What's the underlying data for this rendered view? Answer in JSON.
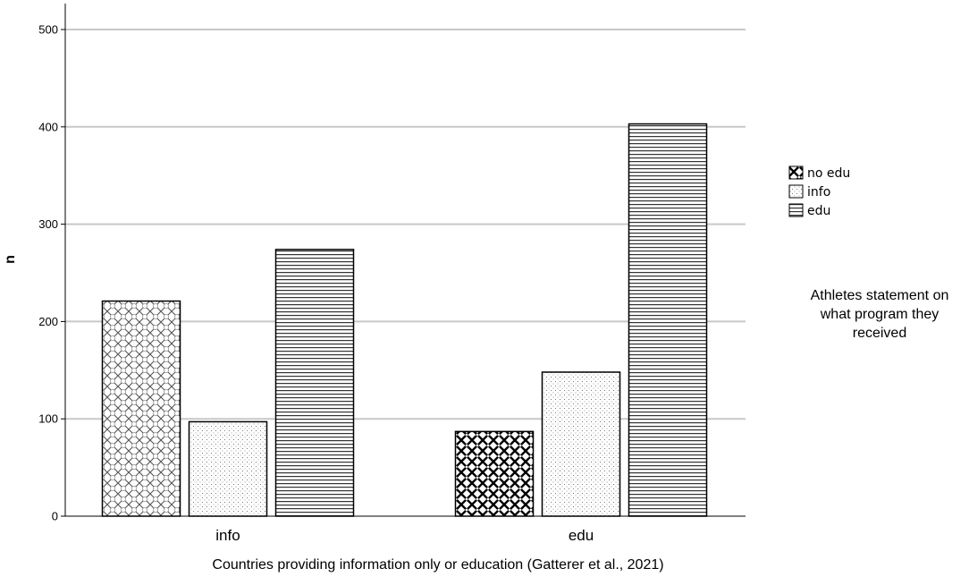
{
  "chart_data": {
    "type": "bar",
    "categories": [
      "info",
      "edu"
    ],
    "series": [
      {
        "name": "no edu",
        "values": [
          221,
          87
        ]
      },
      {
        "name": "info",
        "values": [
          97,
          148
        ]
      },
      {
        "name": "edu",
        "values": [
          274,
          403
        ]
      }
    ],
    "xlabel": "Countries providing information only or education (Gatterer et al., 2021)",
    "ylabel": "n",
    "ylim": [
      0,
      500
    ],
    "yticks": [
      0,
      100,
      200,
      300,
      400,
      500
    ],
    "grid": true,
    "legend": {
      "title": [
        "Athletes statement on",
        "what program they",
        "received"
      ],
      "position": "right"
    }
  }
}
